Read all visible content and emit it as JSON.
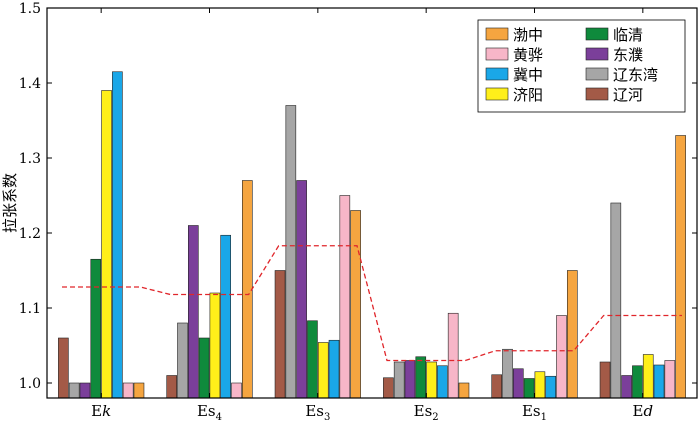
{
  "chart_data": {
    "type": "bar",
    "ylabel": "拉张系数",
    "ylim": [
      0.98,
      1.5
    ],
    "yticks": [
      "1.0",
      "1.1",
      "1.2",
      "1.3",
      "1.4",
      "1.5"
    ],
    "ytick_values": [
      1.0,
      1.1,
      1.2,
      1.3,
      1.4,
      1.5
    ],
    "categories": [
      {
        "base": "E",
        "italic": "k",
        "sub": ""
      },
      {
        "base": "Es",
        "italic": "",
        "sub": "4"
      },
      {
        "base": "Es",
        "italic": "",
        "sub": "3"
      },
      {
        "base": "Es",
        "italic": "",
        "sub": "2"
      },
      {
        "base": "Es",
        "italic": "",
        "sub": "1"
      },
      {
        "base": "E",
        "italic": "d",
        "sub": ""
      }
    ],
    "bar_order": [
      "辽河",
      "辽东湾",
      "东濮",
      "临清",
      "济阳",
      "冀中",
      "黄骅",
      "渤中"
    ],
    "series": [
      {
        "name": "渤中",
        "color": "#f5a540",
        "values": [
          1.0,
          1.27,
          1.23,
          1.0,
          1.15,
          1.33
        ]
      },
      {
        "name": "黄骅",
        "color": "#f7b6c8",
        "values": [
          1.0,
          1.0,
          1.25,
          1.093,
          1.09,
          1.03
        ]
      },
      {
        "name": "冀中",
        "color": "#1aa7e8",
        "values": [
          1.415,
          1.197,
          1.057,
          1.023,
          1.009,
          1.024
        ]
      },
      {
        "name": "济阳",
        "color": "#ffef1a",
        "values": [
          1.39,
          1.12,
          1.054,
          1.028,
          1.015,
          1.038
        ]
      },
      {
        "name": "临清",
        "color": "#0f8a3c",
        "values": [
          1.165,
          1.06,
          1.083,
          1.035,
          1.006,
          1.023
        ]
      },
      {
        "name": "东濮",
        "color": "#7b3f9a",
        "values": [
          1.0,
          1.21,
          1.27,
          1.03,
          1.019,
          1.01
        ]
      },
      {
        "name": "辽东湾",
        "color": "#a6a6a6",
        "values": [
          1.0,
          1.08,
          1.37,
          1.028,
          1.045,
          1.24
        ]
      },
      {
        "name": "辽河",
        "color": "#a35a47",
        "values": [
          1.06,
          1.01,
          1.15,
          1.007,
          1.011,
          1.028
        ]
      }
    ],
    "average_line": {
      "color": "#e0262b",
      "style": "dashed",
      "values": [
        1.128,
        1.118,
        1.183,
        1.03,
        1.043,
        1.09
      ]
    },
    "legend": {
      "position": "top-right",
      "columns": [
        [
          "渤中",
          "黄骅",
          "冀中",
          "济阳"
        ],
        [
          "临清",
          "东濮",
          "辽东湾",
          "辽河"
        ]
      ]
    },
    "grid": false
  }
}
